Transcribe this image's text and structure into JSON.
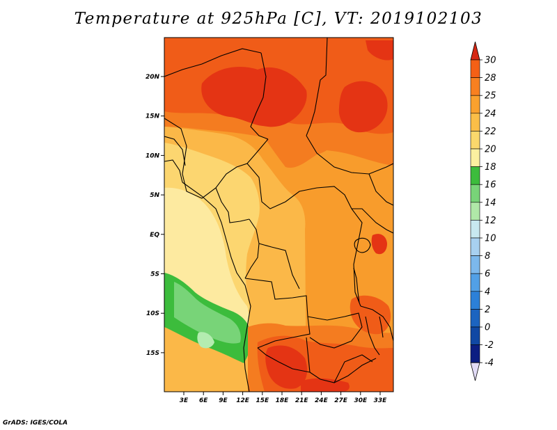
{
  "title": "Temperature at 925hPa [C], VT: 2019102103",
  "credit": "GrADS: IGES/COLA",
  "axes": {
    "lon_ticks": [
      "3E",
      "6E",
      "9E",
      "12E",
      "15E",
      "18E",
      "21E",
      "24E",
      "27E",
      "30E",
      "33E"
    ],
    "lat_ticks": [
      "20N",
      "15N",
      "10N",
      "5N",
      "EQ",
      "5S",
      "10S",
      "15S"
    ]
  },
  "legend": {
    "labels": [
      "30",
      "28",
      "25",
      "24",
      "22",
      "20",
      "18",
      "16",
      "14",
      "12",
      "10",
      "8",
      "6",
      "4",
      "2",
      "0",
      "-2",
      "-4"
    ],
    "colors": [
      "#f03c14",
      "#f46016",
      "#f88020",
      "#faa12e",
      "#fbbe48",
      "#fbd86c",
      "#fbf0a0",
      "#3cbc3c",
      "#78d478",
      "#b0e8a8",
      "#c8e8f0",
      "#a8d0f0",
      "#7cb8ec",
      "#52a0e6",
      "#2c80d8",
      "#1c64c0",
      "#1048a4",
      "#0c1e82"
    ],
    "top_arrow_color": "#d62814",
    "bottom_arrow_color": "#e2dcf6"
  },
  "palette": {
    "p30": "#e43414",
    "p28": "#f05c18",
    "p26": "#f47c20",
    "p24": "#f89c2c",
    "p22": "#fbb848",
    "p20": "#fcd670",
    "p18": "#fdeaa0",
    "g16": "#3cbc3c",
    "g14": "#78d478",
    "g12": "#b4ecb0"
  }
}
